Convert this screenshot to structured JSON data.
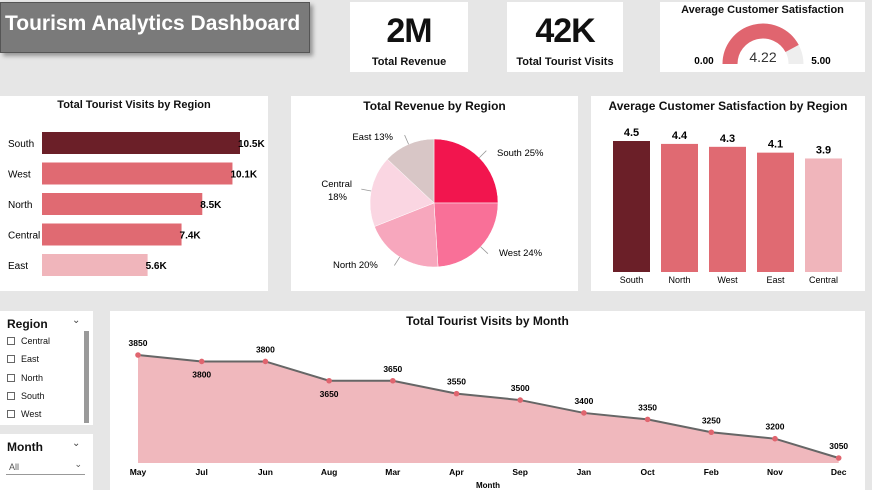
{
  "header": {
    "title": "Tourism Analytics Dashboard"
  },
  "kpis": [
    {
      "value": "2M",
      "label": "Total Revenue"
    },
    {
      "value": "42K",
      "label": "Total Tourist Visits"
    }
  ],
  "gauge": {
    "title": "Average Customer Satisfaction",
    "value": 4.22,
    "value_label": "4.22",
    "min_label": "0.00",
    "max_label": "5.00",
    "fill_color": "#e0656f",
    "track_color": "#eeeeee"
  },
  "slicers": {
    "region": {
      "title": "Region",
      "items": [
        "Central",
        "East",
        "North",
        "South",
        "West"
      ]
    },
    "month": {
      "title": "Month",
      "selected": "All"
    }
  },
  "chart_data": [
    {
      "type": "bar",
      "orientation": "horizontal",
      "title": "Total Tourist Visits by Region",
      "categories": [
        "South",
        "West",
        "North",
        "Central",
        "East"
      ],
      "values": [
        10500,
        10100,
        8500,
        7400,
        5600
      ],
      "labels": [
        "10.5K",
        "10.1K",
        "8.5K",
        "7.4K",
        "5.6K"
      ],
      "colors": [
        "#6b1f28",
        "#e06a72",
        "#e06a72",
        "#e06a72",
        "#f0b5bb"
      ],
      "xlim": [
        0,
        10500
      ]
    },
    {
      "type": "pie",
      "title": "Total Revenue by Region",
      "categories": [
        "South",
        "West",
        "North",
        "Central",
        "East"
      ],
      "values": [
        25,
        24,
        20,
        18,
        13
      ],
      "labels": [
        "South 25%",
        "West 24%",
        "North 20%",
        "Central 18%",
        "East 13%"
      ],
      "colors": [
        "#f2154e",
        "#f97098",
        "#f7a7bd",
        "#fad6e2",
        "#d8c6c6"
      ]
    },
    {
      "type": "bar",
      "orientation": "vertical",
      "title": "Average Customer Satisfaction by Region",
      "categories": [
        "South",
        "North",
        "West",
        "East",
        "Central"
      ],
      "values": [
        4.5,
        4.4,
        4.3,
        4.1,
        3.9
      ],
      "labels": [
        "4.5",
        "4.4",
        "4.3",
        "4.1",
        "3.9"
      ],
      "colors": [
        "#6b1f28",
        "#e06a72",
        "#e06a72",
        "#e06a72",
        "#f0b5bb"
      ],
      "ylim": [
        0,
        4.5
      ]
    },
    {
      "type": "area",
      "title": "Total Tourist Visits by Month",
      "xlabel": "Month",
      "categories": [
        "May",
        "Jul",
        "Jun",
        "Aug",
        "Mar",
        "Apr",
        "Sep",
        "Jan",
        "Oct",
        "Feb",
        "Nov",
        "Dec"
      ],
      "values": [
        3850,
        3800,
        3800,
        3650,
        3650,
        3550,
        3500,
        3400,
        3350,
        3250,
        3200,
        3050
      ],
      "labels": [
        "3850",
        "3800",
        "3800",
        "3650",
        "3650",
        "3550",
        "3500",
        "3400",
        "3350",
        "3250",
        "3200",
        "3050"
      ],
      "label_positions": [
        "above",
        "below",
        "above",
        "below",
        "above",
        "above",
        "above",
        "above",
        "above",
        "above",
        "above",
        "above"
      ],
      "ylim": [
        3050,
        3850
      ],
      "fill_color": "#f0b8bd",
      "line_color": "#666666",
      "marker_color": "#e0656f"
    }
  ]
}
